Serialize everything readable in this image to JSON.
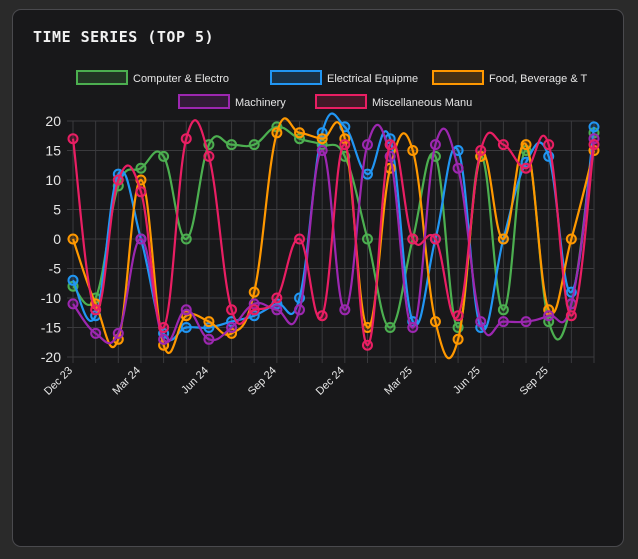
{
  "card": {
    "title": "TIME SERIES (TOP 5)"
  },
  "chart_data": {
    "type": "line",
    "title": "",
    "xlabel": "",
    "ylabel": "",
    "ylim": [
      -20,
      20
    ],
    "yticks": [
      20,
      15,
      10,
      5,
      0,
      -5,
      -10,
      -15,
      -20
    ],
    "grid": true,
    "legend_position": "top",
    "x": [
      "Dec 23",
      "Jan 24",
      "Feb 24",
      "Mar 24",
      "Apr 24",
      "May 24",
      "Jun 24",
      "Jul 24",
      "Aug 24",
      "Sep 24",
      "Oct 24",
      "Nov 24",
      "Dec 24",
      "Jan 25",
      "Feb 25",
      "Mar 25",
      "Apr 25",
      "May 25",
      "Jun 25",
      "Jul 25",
      "Aug 25",
      "Sep 25",
      "Oct 25",
      "Nov 25"
    ],
    "xtick_labels": [
      "Dec 23",
      "Mar 24",
      "Jun 24",
      "Sep 24",
      "Dec 24",
      "Mar 25",
      "Jun 25",
      "Sep 25"
    ],
    "series": [
      {
        "name": "Computer & Electro",
        "color": "#4caf50",
        "values": [
          -8,
          -10,
          9,
          12,
          14,
          0,
          16,
          16,
          16,
          19,
          17,
          16,
          14,
          0,
          -15,
          0,
          14,
          -15,
          14,
          -12,
          15,
          -14,
          -11,
          18
        ]
      },
      {
        "name": "Electrical Equipme",
        "color": "#2196f3",
        "values": [
          -7,
          -13,
          11,
          0,
          -16,
          -15,
          -15,
          -14,
          -13,
          -11,
          -10,
          18,
          19,
          11,
          17,
          -14,
          0,
          15,
          -15,
          0,
          13,
          14,
          -9,
          19
        ]
      },
      {
        "name": "Food, Beverage & T",
        "color": "#ff9800",
        "values": [
          0,
          -11,
          -17,
          10,
          -18,
          -13,
          -14,
          -16,
          -9,
          18,
          18,
          17,
          17,
          -15,
          12,
          15,
          -14,
          -17,
          14,
          0,
          16,
          -12,
          0,
          15
        ]
      },
      {
        "name": "Machinery",
        "color": "#9c27b0",
        "values": [
          -11,
          -16,
          -16,
          0,
          -17,
          -12,
          -17,
          -15,
          -11,
          -12,
          -12,
          15,
          -12,
          16,
          14,
          -15,
          16,
          12,
          -14,
          -14,
          -14,
          -13,
          -11,
          17
        ]
      },
      {
        "name": "Miscellaneous Manu",
        "color": "#e91e63",
        "values": [
          17,
          -12,
          10,
          8,
          -15,
          17,
          14,
          -12,
          -12,
          -10,
          0,
          -13,
          16,
          -18,
          16,
          0,
          0,
          -13,
          15,
          16,
          12,
          16,
          -13,
          16
        ]
      }
    ]
  }
}
